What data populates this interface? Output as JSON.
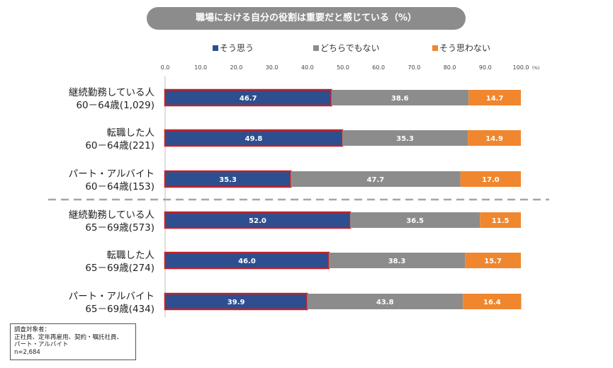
{
  "title": "職場における自分の役割は重要だと感じている（%）",
  "legend": [
    {
      "label": "そう思う",
      "color": "#2e4f8f"
    },
    {
      "label": "どちらでもない",
      "color": "#8c8c8c"
    },
    {
      "label": "そう思わない",
      "color": "#f0862e"
    }
  ],
  "note": {
    "heading": "調査対象者：",
    "line1": "正社員、定年再雇用、契約・嘱託社員、",
    "line2": "パート・アルバイト",
    "line3": "n=2,684"
  },
  "chart_data": {
    "type": "bar",
    "orientation": "horizontal",
    "stacked": true,
    "title": "職場における自分の役割は重要だと感じている（%）",
    "xlim": [
      0,
      100
    ],
    "x_ticks": [
      "0.0",
      "10.0",
      "20.0",
      "30.0",
      "40.0",
      "50.0",
      "60.0",
      "70.0",
      "80.0",
      "90.0",
      "100.0"
    ],
    "x_unit": "(%)",
    "categories": [
      {
        "line1": "継続勤務している人",
        "line2": "60－64歳(1,029)"
      },
      {
        "line1": "転職した人",
        "line2": "60－64歳(221)"
      },
      {
        "line1": "パート・アルバイト",
        "line2": "60－64歳(153)"
      },
      {
        "line1": "継続勤務している人",
        "line2": "65－69歳(573)"
      },
      {
        "line1": "転職した人",
        "line2": "65－69歳(274)"
      },
      {
        "line1": "パート・アルバイト",
        "line2": "65－69歳(434)"
      }
    ],
    "series": [
      {
        "name": "そう思う",
        "color": "#2e4f8f",
        "values": [
          46.7,
          49.8,
          35.3,
          52.0,
          46.0,
          39.9
        ],
        "labels": [
          "46.7",
          "49.8",
          "35.3",
          "52.0",
          "46.0",
          "39.9"
        ]
      },
      {
        "name": "どちらでもない",
        "color": "#8c8c8c",
        "values": [
          38.6,
          35.3,
          47.7,
          36.5,
          38.3,
          43.8
        ],
        "labels": [
          "38.6",
          "35.3",
          "47.7",
          "36.5",
          "38.3",
          "43.8"
        ]
      },
      {
        "name": "そう思わない",
        "color": "#f0862e",
        "values": [
          14.7,
          14.9,
          17.0,
          11.5,
          15.7,
          16.4
        ],
        "labels": [
          "14.7",
          "14.9",
          "17.0",
          "11.5",
          "15.7",
          "16.4"
        ]
      }
    ],
    "highlight_series": "そう思う",
    "highlight_color": "#c0202a",
    "group_divider_after_index": 2
  }
}
